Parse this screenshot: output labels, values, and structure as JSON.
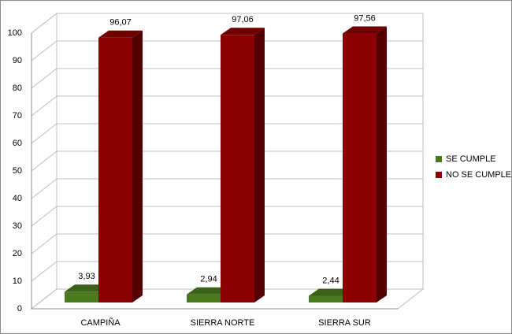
{
  "chart_data": {
    "type": "bar3d",
    "categories": [
      "CAMPIÑA",
      "SIERRA NORTE",
      "SIERRA SUR"
    ],
    "series": [
      {
        "name": "SE CUMPLE",
        "color": "#4a7a1e",
        "values": [
          3.93,
          2.94,
          2.44
        ],
        "value_labels": [
          "3,93",
          "2,94",
          "2,44"
        ]
      },
      {
        "name": "NO SE CUMPLE",
        "color": "#8b0000",
        "values": [
          96.07,
          97.06,
          97.56
        ],
        "value_labels": [
          "96,07",
          "97,06",
          "97,56"
        ]
      }
    ],
    "ylim": [
      0,
      100
    ],
    "yticks": [
      0,
      10,
      20,
      30,
      40,
      50,
      60,
      70,
      80,
      90,
      100
    ],
    "grid": true,
    "legend": "right"
  }
}
